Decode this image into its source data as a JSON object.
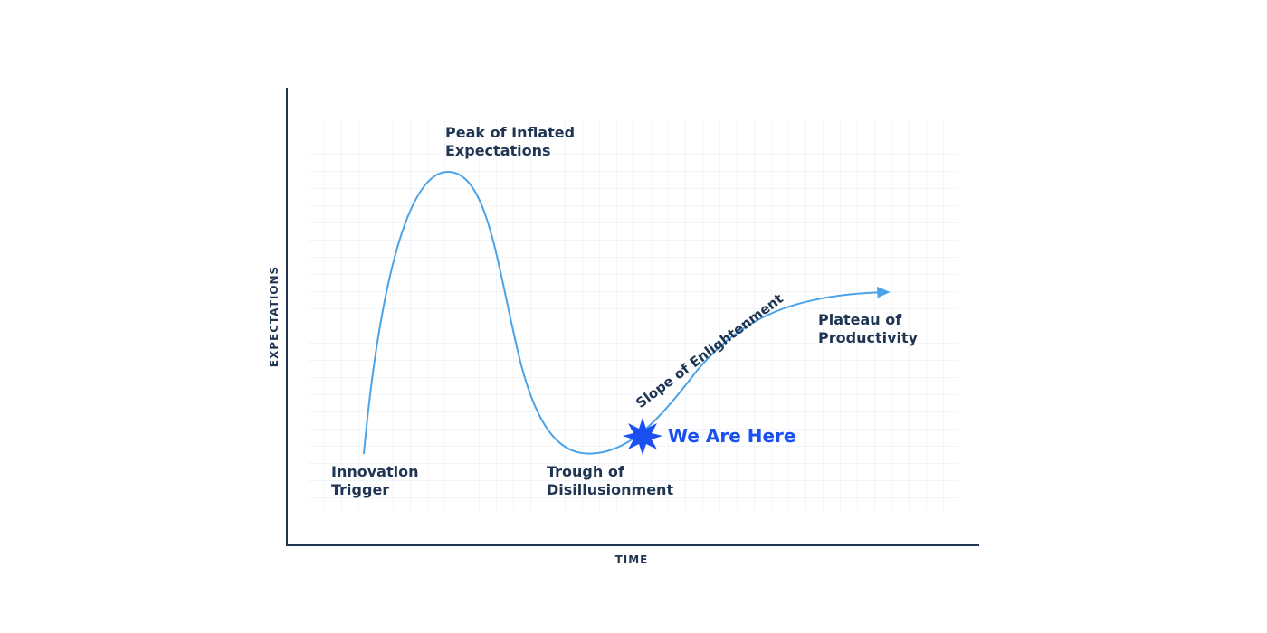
{
  "axes": {
    "y_label": "EXPECTATIONS",
    "x_label": "TIME"
  },
  "phases": [
    {
      "lines": [
        "Innovation",
        "Trigger"
      ]
    },
    {
      "lines": [
        "Peak of Inflated",
        "Expectations"
      ]
    },
    {
      "lines": [
        "Trough of",
        "Disillusionment"
      ]
    },
    {
      "lines": [
        "Slope of Enlightenment"
      ]
    },
    {
      "lines": [
        "Plateau of",
        "Productivity"
      ]
    }
  ],
  "marker": {
    "label": "We Are Here"
  }
}
